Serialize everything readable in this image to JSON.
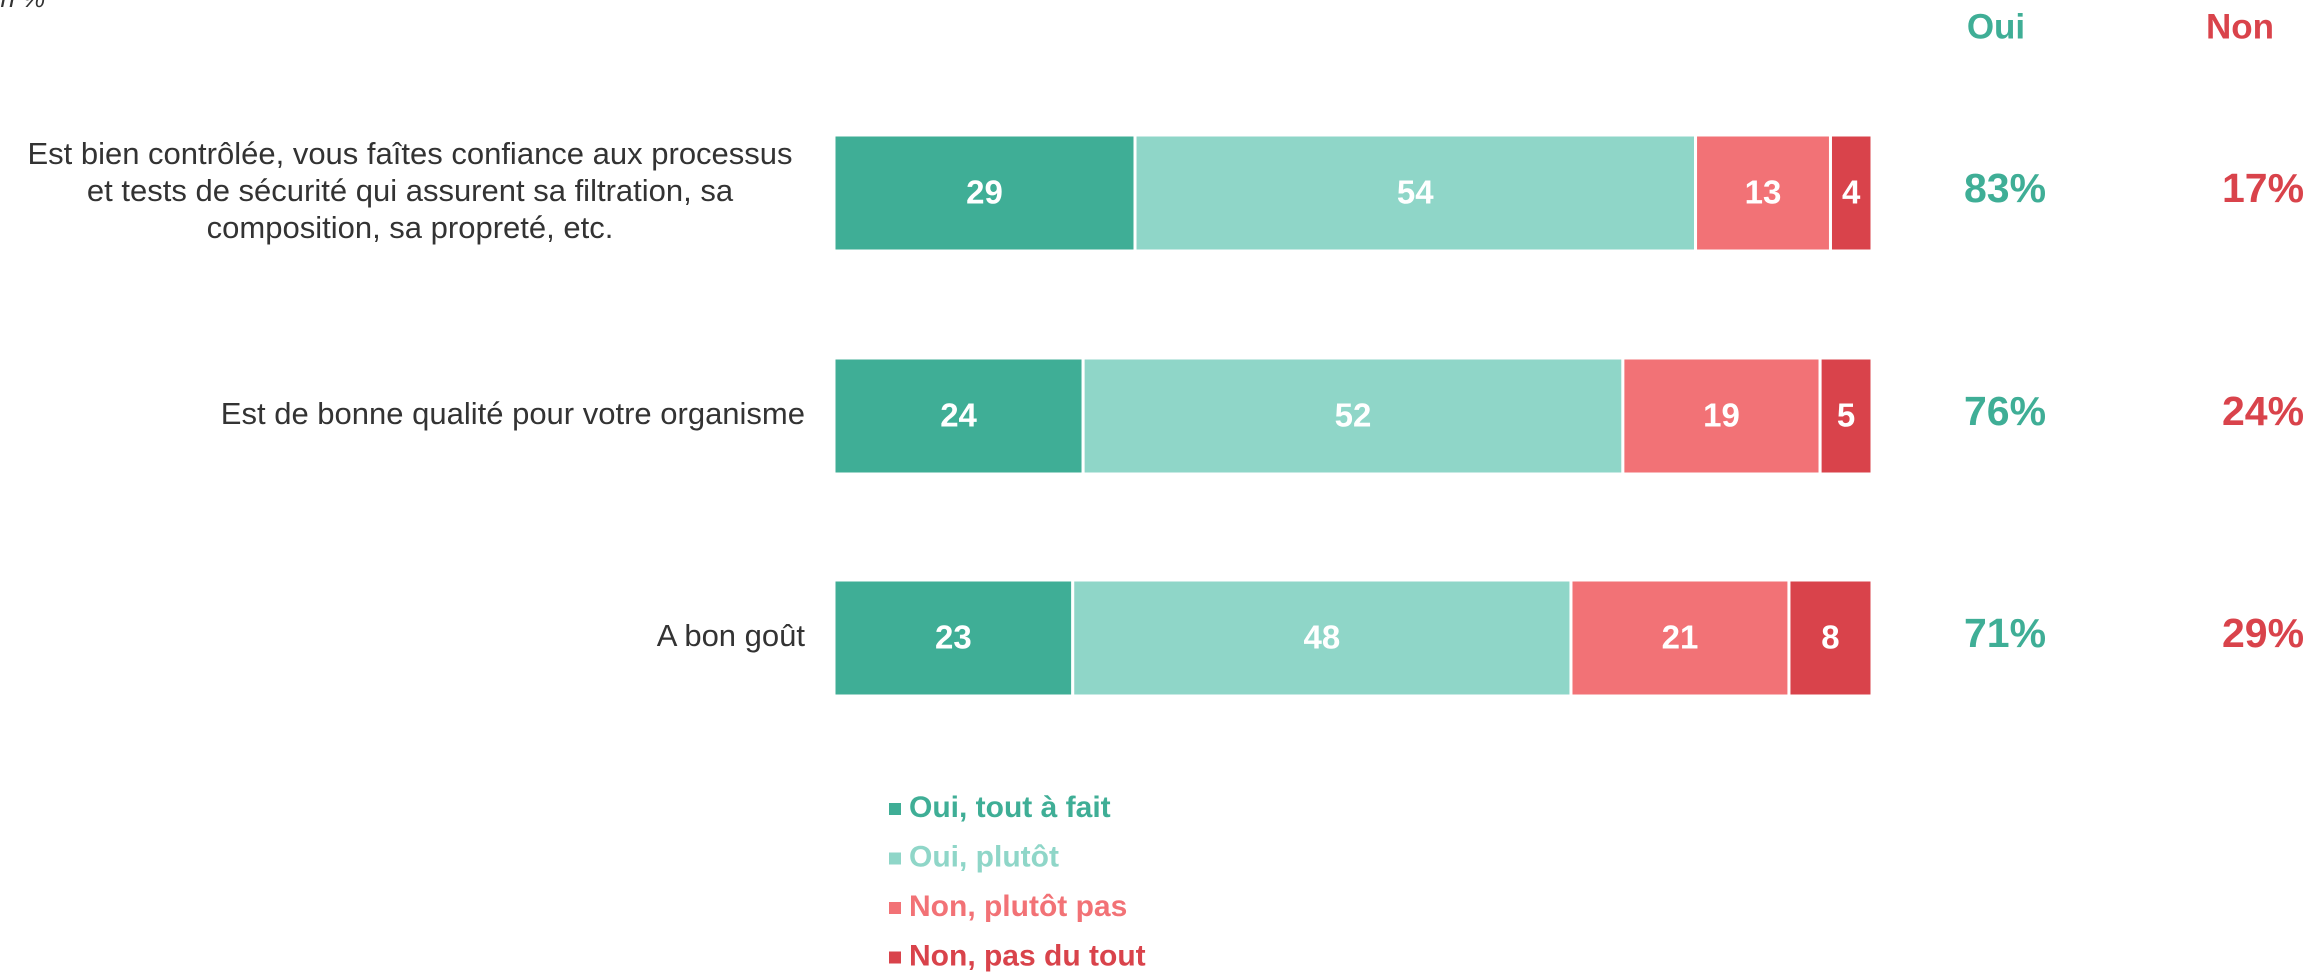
{
  "chart_data": {
    "type": "stacked-bar-horizontal",
    "subtitle": "en %",
    "categories": [
      [
        "Est bien contrôlée, vous faîtes confiance aux processus",
        "et tests de sécurité qui assurent sa filtration, sa",
        "composition, sa propreté, etc."
      ],
      [
        "Est de bonne qualité pour votre organisme"
      ],
      [
        "A bon goût"
      ]
    ],
    "xlim": [
      0,
      100
    ],
    "series": [
      {
        "name": "Oui, tout à fait",
        "color": "#3fae96",
        "values": [
          29,
          24,
          23
        ]
      },
      {
        "name": "Oui, plutôt",
        "color": "#8fd6c8",
        "values": [
          54,
          52,
          48
        ]
      },
      {
        "name": "Non, plutôt pas",
        "color": "#f27276",
        "values": [
          13,
          19,
          21
        ]
      },
      {
        "name": "Non, pas du tout",
        "color": "#d9434b",
        "values": [
          4,
          5,
          8
        ]
      }
    ],
    "totals": [
      {
        "name": "Oui",
        "color": "#3fae96",
        "values": [
          83,
          76,
          71
        ],
        "value_labels": [
          "83%",
          "76%",
          "71%"
        ]
      },
      {
        "name": "Non",
        "color": "#d9434b",
        "values": [
          17,
          24,
          29
        ],
        "value_labels": [
          "17%",
          "24%",
          "29%"
        ]
      }
    ]
  }
}
